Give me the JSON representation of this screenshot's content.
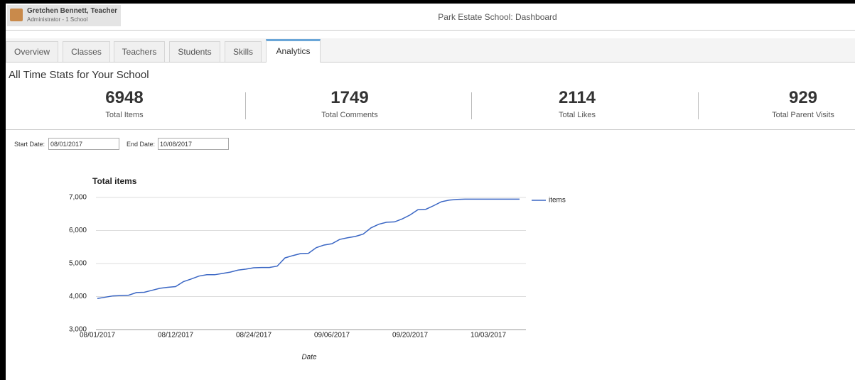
{
  "header": {
    "user_name": "Gretchen Bennett, Teacher",
    "user_role": "Administrator - 1 School",
    "page_title": "Park Estate School: Dashboard"
  },
  "tabs": [
    "Overview",
    "Classes",
    "Teachers",
    "Students",
    "Skills",
    "Analytics"
  ],
  "active_tab": 5,
  "section_title": "All Time Stats for Your School",
  "stats": [
    {
      "value": 6948,
      "label": "Total Items"
    },
    {
      "value": 1749,
      "label": "Total Comments"
    },
    {
      "value": 2114,
      "label": "Total Likes"
    },
    {
      "value": 929,
      "label": "Total Parent Visits"
    }
  ],
  "filters": [
    {
      "label": "Start Date:",
      "value": "08/01/2017"
    },
    {
      "label": "End Date:",
      "value": "10/08/2017"
    }
  ],
  "chart_data": {
    "type": "line",
    "title": "Total items",
    "x_label": "Date",
    "categories": [
      "08/01/2017",
      null,
      null,
      null,
      null,
      null,
      null,
      null,
      null,
      null,
      "08/12/2017",
      null,
      null,
      null,
      null,
      null,
      null,
      null,
      null,
      null,
      "08/24/2017",
      null,
      null,
      null,
      null,
      null,
      null,
      null,
      null,
      null,
      "09/06/2017",
      null,
      null,
      null,
      null,
      null,
      null,
      null,
      null,
      null,
      "09/20/2017",
      null,
      null,
      null,
      null,
      null,
      null,
      null,
      null,
      null,
      "10/03/2017",
      null,
      null,
      null,
      null
    ],
    "series": [
      {
        "name": "items",
        "color": "#3a66c4",
        "values": [
          3940,
          3980,
          4020,
          4030,
          4040,
          4120,
          4130,
          4190,
          4250,
          4280,
          4300,
          4450,
          4530,
          4620,
          4660,
          4660,
          4700,
          4740,
          4800,
          4830,
          4870,
          4880,
          4880,
          4920,
          5170,
          5240,
          5300,
          5310,
          5480,
          5560,
          5600,
          5730,
          5780,
          5820,
          5890,
          6080,
          6190,
          6250,
          6260,
          6350,
          6470,
          6630,
          6640,
          6750,
          6870,
          6920,
          6940,
          6948,
          6948,
          6948,
          6948,
          6948,
          6948,
          6948,
          6948
        ]
      }
    ],
    "ylim": [
      3000,
      7000
    ],
    "yticks": [
      {
        "value": 3000,
        "label": "3,000"
      },
      {
        "value": 4000,
        "label": "4,000"
      },
      {
        "value": 5000,
        "label": "5,000"
      },
      {
        "value": 6000,
        "label": "6,000"
      },
      {
        "value": 7000,
        "label": "7,000"
      }
    ],
    "grid": true,
    "legend": "right"
  }
}
